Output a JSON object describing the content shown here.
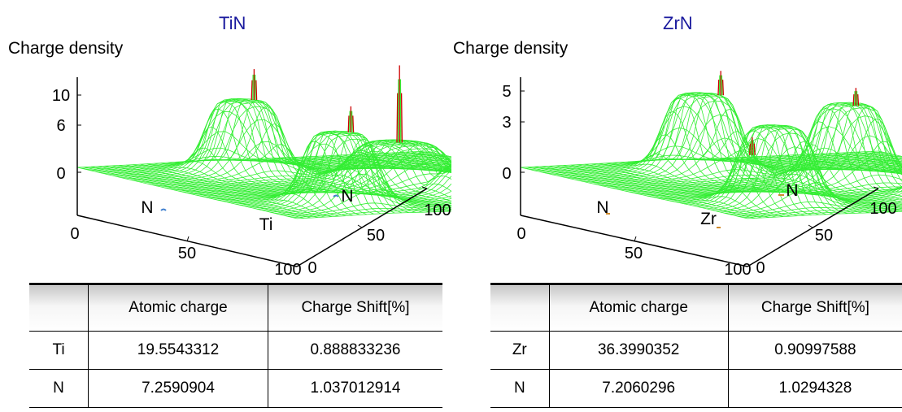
{
  "chart_data": [
    {
      "type": "surface",
      "title": "TiN",
      "zlabel": "Charge density",
      "z_ticks": [
        "0",
        "6",
        "10"
      ],
      "x_ticks": [
        "0",
        "50",
        "100"
      ],
      "y_ticks": [
        "0",
        "50",
        "100"
      ],
      "annotations": [
        "N",
        "N",
        "Ti"
      ],
      "colors": {
        "mesh": "#33ee33",
        "peaks": "#cc0000",
        "title": "#1a1a9e"
      }
    },
    {
      "type": "surface",
      "title": "ZrN",
      "zlabel": "Charge density",
      "z_ticks": [
        "0",
        "3",
        "5"
      ],
      "x_ticks": [
        "0",
        "50",
        "100"
      ],
      "y_ticks": [
        "0",
        "50",
        "100"
      ],
      "annotations": [
        "N",
        "N",
        "Zr"
      ],
      "colors": {
        "mesh": "#33ee33",
        "peaks": "#cc0000",
        "title": "#1a1a9e"
      }
    }
  ],
  "tables": [
    {
      "columns": [
        "",
        "Atomic charge",
        "Charge Shift[%]"
      ],
      "rows": [
        [
          "Ti",
          "19.5543312",
          "0.888833236"
        ],
        [
          "N",
          "7.2590904",
          "1.037012914"
        ]
      ]
    },
    {
      "columns": [
        "",
        "Atomic charge",
        "Charge Shift[%]"
      ],
      "rows": [
        [
          "Zr",
          "36.3990352",
          "0.90997588"
        ],
        [
          "N",
          "7.2060296",
          "1.0294328"
        ]
      ]
    }
  ]
}
